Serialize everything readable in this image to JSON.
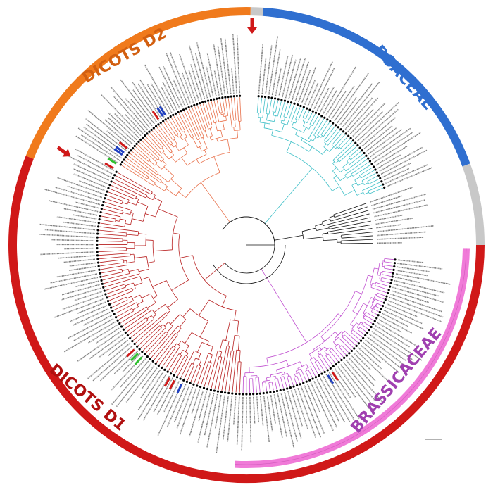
{
  "rings": [
    {
      "label": "DICOTS D2",
      "color": "#f07a1c",
      "text_color": "#d25f10"
    },
    {
      "label": "POACEAE",
      "color": "#2f6fd0",
      "text_color": "#2f6fd0"
    },
    {
      "label": "DICOTS D1",
      "color": "#d01818",
      "text_color": "#b01010"
    },
    {
      "label": "BRASSICACEAE",
      "color": "#f07ad8",
      "text_color": "#a040b0"
    }
  ],
  "unassigned_color": "#c8c8c8",
  "clade_colors": {
    "dicots_d2": "#e8704a",
    "poaceae": "#40c0c8",
    "outgroup": "#111111",
    "brassicaceae": "#c050d0",
    "dicots_d1": "#b82020"
  },
  "highlight_colors": [
    "#d01818",
    "#2040c0",
    "#30c030"
  ],
  "arrow_color": "#d01818"
}
